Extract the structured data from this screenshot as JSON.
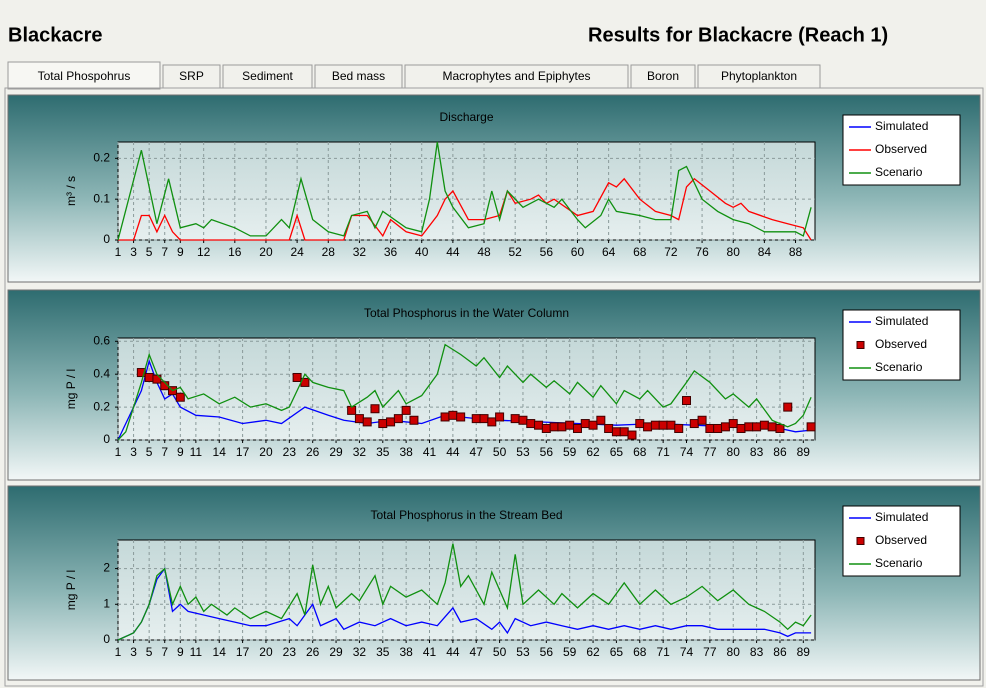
{
  "header": {
    "title": "Blackacre",
    "results": "Results for Blackacre (Reach 1)"
  },
  "tabs": [
    "Total Phospohrus",
    "SRP",
    "Sediment",
    "Bed mass",
    "Macrophytes and Epiphytes",
    "Boron",
    "Phytoplankton"
  ],
  "chart_data": [
    {
      "type": "line",
      "title": "Discharge",
      "y_label": "m³ / s",
      "xlim": [
        1,
        90.5
      ],
      "xticks": [
        1,
        3,
        5,
        7,
        9,
        12,
        16,
        20,
        24,
        28,
        32,
        36,
        40,
        44,
        48,
        52,
        56,
        60,
        64,
        68,
        72,
        76,
        80,
        84,
        88
      ],
      "ylim": [
        0,
        0.24
      ],
      "yticks": [
        0,
        0.1,
        0.2
      ],
      "grid": true,
      "legend": "right",
      "series": [
        {
          "name": "Simulated",
          "color": "#0000ff",
          "x": [],
          "values": []
        },
        {
          "name": "Observed",
          "color": "#ff0000",
          "x": [
            1,
            3,
            4,
            5,
            6,
            7,
            8,
            9,
            23,
            24,
            25,
            30,
            31,
            33,
            35,
            36,
            38,
            40,
            42,
            43,
            44,
            46,
            48,
            50,
            51,
            52,
            54,
            55,
            56,
            57,
            60,
            62,
            64,
            65,
            66,
            68,
            70,
            72,
            73,
            74,
            75,
            77,
            79,
            80,
            81,
            82,
            85,
            87,
            89,
            90
          ],
          "values": [
            0,
            0,
            0.06,
            0.06,
            0.02,
            0.06,
            0.02,
            0,
            0,
            0.06,
            0,
            0,
            0.06,
            0.06,
            0.01,
            0.05,
            0.02,
            0.01,
            0.06,
            0.1,
            0.12,
            0.05,
            0.05,
            0.06,
            0.12,
            0.09,
            0.1,
            0.11,
            0.09,
            0.1,
            0.06,
            0.07,
            0.14,
            0.13,
            0.15,
            0.1,
            0.07,
            0.06,
            0.05,
            0.13,
            0.15,
            0.12,
            0.09,
            0.08,
            0.09,
            0.07,
            0.05,
            0.04,
            0.03,
            0
          ]
        },
        {
          "name": "Scenario",
          "color": "#109010",
          "x": [
            1,
            4,
            6,
            7.5,
            9,
            11,
            12,
            13,
            16,
            18,
            20,
            22,
            23,
            24.5,
            26,
            28,
            30,
            31,
            33,
            34,
            35,
            38,
            40,
            41,
            42,
            43,
            44,
            46,
            48,
            49,
            50,
            51,
            53,
            55,
            57,
            58,
            60,
            61,
            63,
            64,
            65,
            68,
            70,
            72,
            73,
            74,
            76,
            78,
            80,
            82,
            84,
            86,
            88,
            89,
            90
          ],
          "values": [
            0,
            0.22,
            0.04,
            0.15,
            0.03,
            0.04,
            0.03,
            0.05,
            0.03,
            0.01,
            0.01,
            0.05,
            0.03,
            0.15,
            0.05,
            0.02,
            0.01,
            0.06,
            0.07,
            0.03,
            0.07,
            0.03,
            0.02,
            0.1,
            0.24,
            0.12,
            0.08,
            0.03,
            0.04,
            0.12,
            0.05,
            0.12,
            0.08,
            0.1,
            0.08,
            0.1,
            0.05,
            0.03,
            0.06,
            0.1,
            0.07,
            0.06,
            0.05,
            0.05,
            0.17,
            0.18,
            0.1,
            0.07,
            0.05,
            0.04,
            0.02,
            0.02,
            0.02,
            0.01,
            0.08
          ]
        }
      ]
    },
    {
      "type": "line",
      "title": "Total Phosphorus in the Water Column",
      "y_label": "mg P / l",
      "xlim": [
        1,
        90.5
      ],
      "xticks": [
        1,
        3,
        5,
        7,
        9,
        11,
        14,
        17,
        20,
        23,
        26,
        29,
        32,
        35,
        38,
        41,
        44,
        47,
        50,
        53,
        56,
        59,
        62,
        65,
        68,
        71,
        74,
        77,
        80,
        83,
        86,
        89
      ],
      "ylim": [
        0,
        0.62
      ],
      "yticks": [
        0,
        0.2,
        0.4,
        0.6
      ],
      "grid": true,
      "legend": "right",
      "series": [
        {
          "name": "Simulated",
          "color": "#0000ff",
          "x": [
            1,
            2,
            4,
            5,
            6,
            7,
            8,
            9,
            11,
            14,
            17,
            20,
            22,
            25,
            28,
            30,
            33,
            36,
            40,
            43,
            47,
            50,
            55,
            60,
            65,
            70,
            75,
            80,
            85,
            88,
            90
          ],
          "values": [
            0,
            0.1,
            0.3,
            0.48,
            0.35,
            0.25,
            0.28,
            0.2,
            0.15,
            0.14,
            0.1,
            0.12,
            0.1,
            0.2,
            0.15,
            0.12,
            0.1,
            0.12,
            0.1,
            0.15,
            0.13,
            0.12,
            0.11,
            0.1,
            0.09,
            0.1,
            0.09,
            0.08,
            0.08,
            0.05,
            0.06
          ]
        },
        {
          "name": "Observed",
          "color": "#cc0000",
          "marker": "square",
          "x": [
            4,
            5,
            6,
            7,
            8,
            9,
            24,
            25,
            31,
            32,
            33,
            34,
            35,
            36,
            37,
            38,
            39,
            43,
            44,
            45,
            47,
            48,
            49,
            50,
            52,
            53,
            54,
            55,
            56,
            57,
            58,
            59,
            60,
            61,
            62,
            63,
            64,
            65,
            66,
            67,
            68,
            69,
            70,
            71,
            72,
            73,
            74,
            75,
            76,
            77,
            78,
            79,
            80,
            81,
            82,
            83,
            84,
            85,
            86,
            87,
            90
          ],
          "values": [
            0.41,
            0.38,
            0.37,
            0.33,
            0.3,
            0.26,
            0.38,
            0.35,
            0.18,
            0.13,
            0.11,
            0.19,
            0.1,
            0.11,
            0.13,
            0.18,
            0.12,
            0.14,
            0.15,
            0.14,
            0.13,
            0.13,
            0.11,
            0.14,
            0.13,
            0.12,
            0.1,
            0.09,
            0.07,
            0.08,
            0.08,
            0.09,
            0.07,
            0.1,
            0.09,
            0.12,
            0.07,
            0.05,
            0.05,
            0.03,
            0.1,
            0.08,
            0.09,
            0.09,
            0.09,
            0.07,
            0.24,
            0.1,
            0.12,
            0.07,
            0.07,
            0.08,
            0.1,
            0.07,
            0.08,
            0.08,
            0.09,
            0.08,
            0.07,
            0.2,
            0.08
          ]
        },
        {
          "name": "Scenario",
          "color": "#109010",
          "x": [
            1,
            2,
            3,
            4,
            5,
            6,
            7,
            8,
            9,
            10,
            12,
            14,
            16,
            18,
            20,
            22,
            23,
            24,
            25,
            26,
            28,
            30,
            31,
            33,
            34,
            35,
            37,
            38,
            40,
            42,
            43,
            45,
            47,
            48,
            50,
            51,
            53,
            54,
            56,
            57,
            59,
            60,
            62,
            63,
            65,
            66,
            68,
            69,
            71,
            72,
            74,
            75,
            77,
            79,
            80,
            82,
            83,
            85,
            87,
            88,
            89,
            90
          ],
          "values": [
            0,
            0.05,
            0.2,
            0.35,
            0.52,
            0.4,
            0.35,
            0.3,
            0.32,
            0.25,
            0.28,
            0.22,
            0.26,
            0.2,
            0.22,
            0.18,
            0.2,
            0.3,
            0.4,
            0.35,
            0.32,
            0.3,
            0.2,
            0.26,
            0.3,
            0.2,
            0.3,
            0.22,
            0.27,
            0.4,
            0.58,
            0.52,
            0.45,
            0.5,
            0.38,
            0.45,
            0.35,
            0.4,
            0.32,
            0.36,
            0.28,
            0.35,
            0.26,
            0.33,
            0.22,
            0.3,
            0.25,
            0.3,
            0.2,
            0.22,
            0.35,
            0.42,
            0.35,
            0.25,
            0.28,
            0.2,
            0.25,
            0.12,
            0.08,
            0.1,
            0.15,
            0.26
          ]
        }
      ]
    },
    {
      "type": "line",
      "title": "Total Phosphorus in the Stream Bed",
      "y_label": "mg P / l",
      "xlim": [
        1,
        90.5
      ],
      "xticks": [
        1,
        3,
        5,
        7,
        9,
        11,
        14,
        17,
        20,
        23,
        26,
        29,
        32,
        35,
        38,
        41,
        44,
        47,
        50,
        53,
        56,
        59,
        62,
        65,
        68,
        71,
        74,
        77,
        80,
        83,
        86,
        89
      ],
      "ylim": [
        0,
        2.8
      ],
      "yticks": [
        0,
        1,
        2
      ],
      "grid": true,
      "legend": "right",
      "series": [
        {
          "name": "Simulated",
          "color": "#0000ff",
          "x": [
            1,
            3,
            4,
            5,
            6,
            7,
            8,
            9,
            10,
            12,
            14,
            16,
            18,
            20,
            23,
            24,
            26,
            27,
            29,
            30,
            32,
            34,
            36,
            38,
            40,
            42,
            44,
            45,
            47,
            49,
            50,
            51,
            52,
            54,
            56,
            58,
            60,
            62,
            64,
            66,
            68,
            70,
            72,
            74,
            76,
            78,
            80,
            82,
            84,
            86,
            87,
            88,
            90
          ],
          "values": [
            0,
            0.2,
            0.5,
            1.0,
            1.7,
            2.0,
            0.8,
            1.0,
            0.8,
            0.7,
            0.6,
            0.5,
            0.4,
            0.4,
            0.6,
            0.4,
            1.0,
            0.4,
            0.6,
            0.3,
            0.5,
            0.4,
            0.6,
            0.4,
            0.5,
            0.4,
            0.9,
            0.5,
            0.6,
            0.3,
            0.5,
            0.2,
            0.6,
            0.4,
            0.5,
            0.4,
            0.3,
            0.4,
            0.3,
            0.4,
            0.3,
            0.4,
            0.3,
            0.4,
            0.4,
            0.3,
            0.3,
            0.3,
            0.3,
            0.2,
            0.1,
            0.2,
            0.2
          ]
        },
        {
          "name": "Observed",
          "color": "#cc0000",
          "marker": "square",
          "x": [],
          "values": []
        },
        {
          "name": "Scenario",
          "color": "#109010",
          "x": [
            1,
            3,
            4,
            5,
            6,
            7,
            8,
            9,
            10,
            11,
            12,
            13,
            15,
            16,
            18,
            20,
            22,
            24,
            25,
            26,
            27,
            28,
            29,
            31,
            32,
            34,
            35,
            36,
            38,
            40,
            42,
            43,
            44,
            45,
            46,
            48,
            49,
            51,
            52,
            53,
            55,
            57,
            58,
            60,
            62,
            64,
            66,
            68,
            70,
            72,
            74,
            76,
            78,
            80,
            82,
            84,
            86,
            87,
            88,
            89,
            90
          ],
          "values": [
            0,
            0.2,
            0.5,
            1.0,
            1.8,
            2.0,
            1.0,
            1.5,
            1.0,
            1.2,
            0.8,
            1.0,
            0.7,
            0.9,
            0.6,
            0.8,
            0.6,
            1.3,
            0.7,
            2.1,
            1.0,
            1.5,
            0.9,
            1.3,
            1.1,
            1.8,
            1.0,
            1.5,
            1.2,
            1.4,
            1.0,
            1.6,
            2.7,
            1.5,
            1.8,
            1.0,
            1.9,
            0.9,
            2.4,
            1.0,
            1.4,
            1.0,
            1.3,
            0.9,
            1.3,
            1.0,
            1.6,
            1.0,
            1.4,
            1.0,
            1.2,
            1.5,
            1.1,
            1.4,
            1.0,
            0.8,
            0.5,
            0.3,
            0.5,
            0.4,
            0.7
          ]
        }
      ]
    }
  ]
}
